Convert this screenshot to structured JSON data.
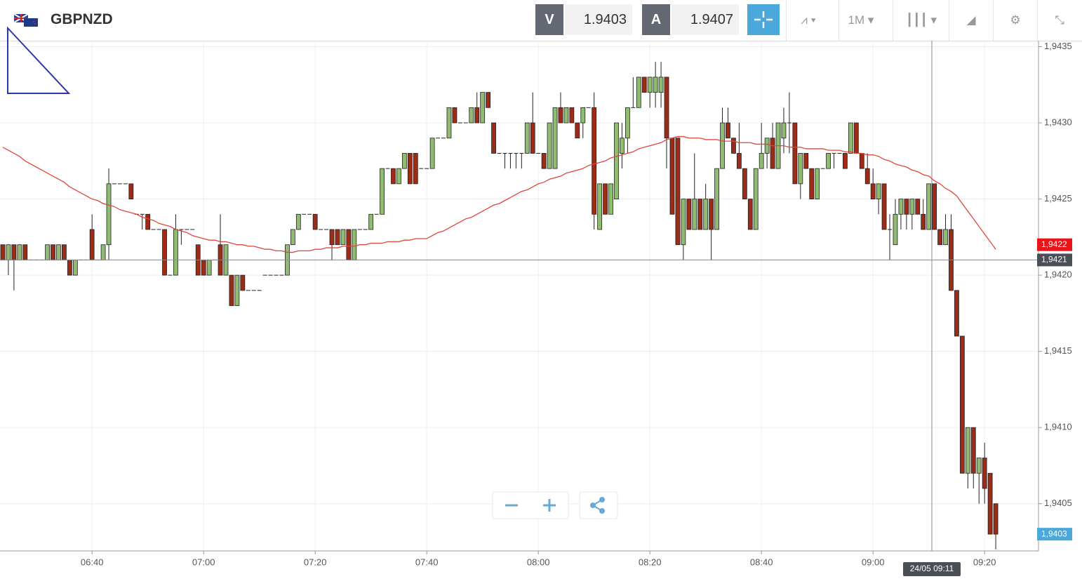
{
  "header": {
    "symbol": "GBPNZD",
    "bid_label": "V",
    "bid": "1.9403",
    "ask_label": "A",
    "ask": "1.9407",
    "timeframe": "1M"
  },
  "chart_data": {
    "type": "candlestick",
    "crosshair_time": "24/05 09:11",
    "up_color": "#8fbc72",
    "down_color": "#9c2b17",
    "grid": true,
    "categories": [
      null,
      null,
      null,
      null,
      null,
      null,
      null,
      null,
      null,
      null,
      null,
      null,
      null,
      null,
      null,
      null,
      "06:40",
      null,
      null,
      null,
      null,
      null,
      null,
      null,
      null,
      null,
      null,
      null,
      null,
      null,
      null,
      null,
      null,
      null,
      null,
      null,
      "07:00",
      null,
      null,
      null,
      null,
      null,
      null,
      null,
      null,
      null,
      null,
      null,
      null,
      null,
      null,
      null,
      null,
      null,
      null,
      null,
      "07:20",
      null,
      null,
      null,
      null,
      null,
      null,
      null,
      null,
      null,
      null,
      null,
      null,
      null,
      null,
      null,
      null,
      null,
      null,
      null,
      "07:40",
      null,
      null,
      null,
      null,
      null,
      null,
      null,
      null,
      null,
      null,
      null,
      null,
      null,
      null,
      null,
      null,
      null,
      null,
      null,
      "08:00",
      null,
      null,
      null,
      null,
      null,
      null,
      null,
      null,
      null,
      null,
      null,
      null,
      null,
      null,
      null,
      null,
      null,
      null,
      null,
      "08:20",
      null,
      null,
      null,
      null,
      null,
      null,
      null,
      null,
      null,
      null,
      null,
      null,
      null,
      null,
      null,
      null,
      null,
      null,
      null,
      "08:40",
      null,
      null,
      null,
      null,
      null,
      null,
      null,
      null,
      null,
      null,
      null,
      null,
      null,
      null,
      null,
      null,
      null,
      null,
      null,
      "09:00",
      null,
      null,
      null,
      null,
      null,
      null,
      null,
      null,
      null,
      null,
      null,
      null,
      null,
      null,
      null,
      null,
      null,
      null,
      null,
      "09:20",
      null,
      null
    ],
    "open": [
      1.9422,
      1.9421,
      1.9422,
      1.9421,
      1.9422,
      1.9421,
      1.9421,
      1.9421,
      1.9421,
      1.9422,
      1.9421,
      1.9422,
      1.9421,
      1.942,
      1.9421,
      1.9421,
      1.9423,
      1.9421,
      1.9421,
      1.9422,
      1.9426,
      1.9426,
      1.9426,
      1.9426,
      1.9424,
      1.9424,
      1.9424,
      1.9423,
      1.9423,
      1.9423,
      1.942,
      1.942,
      1.9423,
      1.9423,
      1.9423,
      1.9422,
      1.9421,
      1.942,
      1.9421,
      1.9422,
      1.942,
      1.942,
      1.9418,
      1.942,
      1.9419,
      1.9419,
      1.9419,
      1.942,
      1.942,
      1.942,
      1.942,
      1.942,
      1.9422,
      1.9423,
      1.9424,
      1.9424,
      1.9424,
      1.9423,
      1.9423,
      1.9423,
      1.9423,
      1.9422,
      1.9423,
      1.9421,
      1.9423,
      1.9423,
      1.9423,
      1.9424,
      1.9424,
      1.9427,
      1.9427,
      1.9426,
      1.9427,
      1.9428,
      1.9428,
      1.9427,
      1.9427,
      1.9427,
      1.9429,
      1.9429,
      1.9429,
      1.9431,
      1.943,
      1.943,
      1.943,
      1.9431,
      1.943,
      1.9432,
      1.943,
      1.9428,
      1.9428,
      1.9428,
      1.9428,
      1.9428,
      1.9428,
      1.943,
      1.9428,
      1.9428,
      1.9427,
      1.9427,
      1.9431,
      1.943,
      1.9431,
      1.943,
      1.943,
      1.9431,
      1.9431,
      1.9423,
      1.9426,
      1.9424,
      1.9425,
      1.9428,
      1.9429,
      1.9431,
      1.9431,
      1.9433,
      1.9432,
      1.9432,
      1.9432,
      1.9433,
      1.9429,
      1.9429,
      1.9422,
      1.9425,
      1.9423,
      1.9425,
      1.9423,
      1.9425,
      1.9423,
      1.9427,
      1.943,
      1.9429,
      1.9428,
      1.9427,
      1.9425,
      1.9423,
      1.9427,
      1.9428,
      1.9429,
      1.9427,
      1.9429,
      1.943,
      1.943,
      1.9426,
      1.9428,
      1.9427,
      1.9425,
      1.9427,
      1.9427,
      1.9428,
      1.9428,
      1.9428,
      1.9428,
      1.943,
      1.9428,
      1.9427,
      1.9426,
      1.9425,
      1.9426,
      1.9423,
      1.9422,
      1.9424,
      1.9425,
      1.9424,
      1.9425,
      1.9424,
      1.9423,
      1.9426,
      1.9423,
      1.9422,
      1.9423,
      1.9419,
      1.9416,
      1.9407,
      1.941,
      1.9407,
      1.9408,
      1.9407,
      1.9405
    ],
    "high": [
      1.9422,
      1.9422,
      1.9422,
      1.9422,
      1.9422,
      1.9421,
      1.9421,
      1.9421,
      1.9422,
      1.9422,
      1.9422,
      1.9422,
      1.9421,
      1.9421,
      1.9421,
      1.9421,
      1.9424,
      1.9421,
      1.9422,
      1.9427,
      1.9426,
      1.9426,
      1.9426,
      1.9426,
      1.9424,
      1.9424,
      1.9424,
      1.9423,
      1.9423,
      1.9423,
      1.942,
      1.9424,
      1.9423,
      1.9423,
      1.9423,
      1.9422,
      1.9421,
      1.9421,
      1.9421,
      1.9424,
      1.9422,
      1.942,
      1.942,
      1.942,
      1.9419,
      1.9419,
      1.9419,
      1.942,
      1.942,
      1.942,
      1.942,
      1.9422,
      1.9423,
      1.9424,
      1.9424,
      1.9424,
      1.9424,
      1.9423,
      1.9423,
      1.9423,
      1.9423,
      1.9423,
      1.9423,
      1.9423,
      1.9423,
      1.9423,
      1.9424,
      1.9424,
      1.9427,
      1.9427,
      1.9427,
      1.9427,
      1.9428,
      1.9428,
      1.9428,
      1.9427,
      1.9427,
      1.9429,
      1.9429,
      1.9429,
      1.9431,
      1.9431,
      1.943,
      1.943,
      1.9431,
      1.9432,
      1.9432,
      1.9432,
      1.943,
      1.9428,
      1.9428,
      1.9428,
      1.9428,
      1.9428,
      1.943,
      1.9432,
      1.9428,
      1.9428,
      1.943,
      1.9431,
      1.9432,
      1.9431,
      1.9431,
      1.943,
      1.9431,
      1.9431,
      1.9432,
      1.9426,
      1.9426,
      1.9426,
      1.943,
      1.943,
      1.9431,
      1.9433,
      1.9433,
      1.9433,
      1.9433,
      1.9434,
      1.9434,
      1.9433,
      1.9429,
      1.9429,
      1.9425,
      1.9425,
      1.9428,
      1.9425,
      1.9426,
      1.9425,
      1.9427,
      1.9431,
      1.9431,
      1.9429,
      1.943,
      1.9427,
      1.9425,
      1.9427,
      1.943,
      1.9429,
      1.943,
      1.943,
      1.9431,
      1.9432,
      1.943,
      1.9428,
      1.9428,
      1.9427,
      1.9427,
      1.9427,
      1.9428,
      1.9428,
      1.9428,
      1.9428,
      1.943,
      1.943,
      1.9428,
      1.9428,
      1.9427,
      1.9426,
      1.9426,
      1.9424,
      1.9425,
      1.9425,
      1.9425,
      1.9425,
      1.9425,
      1.9425,
      1.9426,
      1.9426,
      1.9423,
      1.9424,
      1.9424,
      1.9419,
      1.9416,
      1.941,
      1.941,
      1.9408,
      1.9409,
      1.9407,
      1.9405
    ],
    "low": [
      1.9421,
      1.942,
      1.9419,
      1.9421,
      1.9421,
      1.9421,
      1.9421,
      1.9421,
      1.9421,
      1.9421,
      1.9421,
      1.9421,
      1.942,
      1.942,
      1.9421,
      1.9421,
      1.9421,
      1.9421,
      1.9421,
      1.9421,
      1.9426,
      1.9426,
      1.9426,
      1.9425,
      1.9424,
      1.9423,
      1.9423,
      1.9423,
      1.9423,
      1.942,
      1.942,
      1.942,
      1.9422,
      1.9423,
      1.9423,
      1.942,
      1.942,
      1.942,
      1.9421,
      1.942,
      1.942,
      1.9418,
      1.9418,
      1.9419,
      1.9419,
      1.9419,
      1.9419,
      1.942,
      1.942,
      1.942,
      1.942,
      1.942,
      1.9422,
      1.9423,
      1.9424,
      1.9424,
      1.9423,
      1.9423,
      1.9423,
      1.9421,
      1.9422,
      1.9422,
      1.9421,
      1.9421,
      1.9423,
      1.9423,
      1.9423,
      1.9424,
      1.9424,
      1.9427,
      1.9426,
      1.9426,
      1.9427,
      1.9426,
      1.9426,
      1.9427,
      1.9427,
      1.9427,
      1.9429,
      1.9429,
      1.9429,
      1.943,
      1.943,
      1.943,
      1.943,
      1.943,
      1.943,
      1.9431,
      1.9428,
      1.9428,
      1.9427,
      1.9427,
      1.9427,
      1.9427,
      1.9428,
      1.9428,
      1.9428,
      1.9427,
      1.9427,
      1.9427,
      1.943,
      1.943,
      1.943,
      1.9429,
      1.9429,
      1.9431,
      1.9423,
      1.9423,
      1.9424,
      1.9424,
      1.9425,
      1.9427,
      1.9428,
      1.9431,
      1.9431,
      1.9432,
      1.9431,
      1.9431,
      1.9431,
      1.9427,
      1.9424,
      1.9422,
      1.9421,
      1.9423,
      1.9423,
      1.9423,
      1.9423,
      1.9421,
      1.9423,
      1.9427,
      1.9429,
      1.9428,
      1.9427,
      1.9425,
      1.9423,
      1.9423,
      1.9427,
      1.9427,
      1.9427,
      1.9427,
      1.9428,
      1.9428,
      1.9426,
      1.9425,
      1.9427,
      1.9425,
      1.9425,
      1.9427,
      1.9427,
      1.9427,
      1.9428,
      1.9427,
      1.9428,
      1.9428,
      1.9427,
      1.9426,
      1.9425,
      1.9424,
      1.9423,
      1.9421,
      1.9422,
      1.9423,
      1.9423,
      1.9423,
      1.9424,
      1.9423,
      1.9423,
      1.9423,
      1.9422,
      1.9422,
      1.9419,
      1.9416,
      1.9407,
      1.9406,
      1.9406,
      1.9405,
      1.9405,
      1.9403,
      1.9402
    ],
    "close": [
      1.9421,
      1.9422,
      1.9421,
      1.9422,
      1.9421,
      1.9421,
      1.9421,
      1.9421,
      1.9422,
      1.9421,
      1.9422,
      1.9421,
      1.942,
      1.9421,
      1.9421,
      1.9421,
      1.9421,
      1.9421,
      1.9422,
      1.9426,
      1.9426,
      1.9426,
      1.9426,
      1.9425,
      1.9424,
      1.9424,
      1.9423,
      1.9423,
      1.9423,
      1.942,
      1.942,
      1.9423,
      1.9423,
      1.9423,
      1.9423,
      1.942,
      1.942,
      1.9421,
      1.9421,
      1.942,
      1.9422,
      1.9418,
      1.942,
      1.9419,
      1.9419,
      1.9419,
      1.9419,
      1.942,
      1.942,
      1.942,
      1.942,
      1.9422,
      1.9423,
      1.9424,
      1.9424,
      1.9424,
      1.9423,
      1.9423,
      1.9423,
      1.9422,
      1.9422,
      1.9423,
      1.9421,
      1.9423,
      1.9423,
      1.9423,
      1.9424,
      1.9424,
      1.9427,
      1.9427,
      1.9426,
      1.9427,
      1.9428,
      1.9426,
      1.9426,
      1.9427,
      1.9427,
      1.9429,
      1.9429,
      1.9429,
      1.9431,
      1.943,
      1.943,
      1.943,
      1.9431,
      1.943,
      1.9432,
      1.9431,
      1.9428,
      1.9428,
      1.9428,
      1.9428,
      1.9428,
      1.9428,
      1.943,
      1.9428,
      1.9428,
      1.9427,
      1.943,
      1.9431,
      1.943,
      1.9431,
      1.943,
      1.9429,
      1.9431,
      1.9431,
      1.9424,
      1.9426,
      1.9424,
      1.9426,
      1.943,
      1.9429,
      1.9431,
      1.9431,
      1.9433,
      1.9432,
      1.9433,
      1.9433,
      1.9433,
      1.9429,
      1.9424,
      1.9422,
      1.9425,
      1.9423,
      1.9425,
      1.9423,
      1.9425,
      1.9423,
      1.9427,
      1.943,
      1.9429,
      1.9428,
      1.9427,
      1.9425,
      1.9423,
      1.9427,
      1.9428,
      1.9429,
      1.9427,
      1.943,
      1.943,
      1.943,
      1.9426,
      1.9428,
      1.9427,
      1.9425,
      1.9427,
      1.9427,
      1.9428,
      1.9428,
      1.9428,
      1.9427,
      1.943,
      1.9428,
      1.9427,
      1.9426,
      1.9425,
      1.9426,
      1.9423,
      1.9423,
      1.9424,
      1.9425,
      1.9424,
      1.9425,
      1.9424,
      1.9423,
      1.9426,
      1.9423,
      1.9422,
      1.9423,
      1.9419,
      1.9416,
      1.9407,
      1.941,
      1.9407,
      1.9408,
      1.9406,
      1.9403,
      1.9403
    ],
    "ma": {
      "color": "#e0463c",
      "values": [
        1.94284,
        1.94282,
        1.9428,
        1.94278,
        1.94275,
        1.94273,
        1.94271,
        1.94269,
        1.94267,
        1.94265,
        1.94263,
        1.94261,
        1.94258,
        1.94256,
        1.94254,
        1.94252,
        1.9425,
        1.94249,
        1.94247,
        1.94246,
        1.94245,
        1.94243,
        1.94242,
        1.94241,
        1.9424,
        1.94238,
        1.94237,
        1.94236,
        1.94234,
        1.94233,
        1.94232,
        1.9423,
        1.94229,
        1.94228,
        1.94226,
        1.94225,
        1.94224,
        1.94223,
        1.94223,
        1.94222,
        1.94222,
        1.94221,
        1.9422,
        1.9422,
        1.94219,
        1.94219,
        1.94218,
        1.94217,
        1.94217,
        1.94216,
        1.94216,
        1.94215,
        1.94215,
        1.94216,
        1.94216,
        1.94216,
        1.94217,
        1.94217,
        1.94218,
        1.94218,
        1.94218,
        1.94219,
        1.94219,
        1.94219,
        1.9422,
        1.9422,
        1.94221,
        1.94221,
        1.94221,
        1.94222,
        1.94222,
        1.94222,
        1.94223,
        1.94223,
        1.94224,
        1.94224,
        1.94224,
        1.94226,
        1.94228,
        1.94229,
        1.94231,
        1.94233,
        1.94235,
        1.94237,
        1.94238,
        1.9424,
        1.94242,
        1.94244,
        1.94246,
        1.94247,
        1.94249,
        1.94251,
        1.94253,
        1.94255,
        1.94256,
        1.94258,
        1.9426,
        1.94261,
        1.94263,
        1.94264,
        1.94265,
        1.94267,
        1.94268,
        1.94269,
        1.9427,
        1.94272,
        1.94273,
        1.94274,
        1.94275,
        1.94277,
        1.94278,
        1.94279,
        1.9428,
        1.94281,
        1.94283,
        1.94284,
        1.94285,
        1.94286,
        1.94287,
        1.94289,
        1.9429,
        1.94291,
        1.94291,
        1.9429,
        1.9429,
        1.9429,
        1.94289,
        1.94289,
        1.94289,
        1.94288,
        1.94288,
        1.94288,
        1.94287,
        1.94287,
        1.94287,
        1.94286,
        1.94286,
        1.94286,
        1.94285,
        1.94285,
        1.94285,
        1.94284,
        1.94284,
        1.94284,
        1.94283,
        1.94283,
        1.94283,
        1.94283,
        1.94282,
        1.94282,
        1.94282,
        1.94281,
        1.94281,
        1.9428,
        1.9428,
        1.94279,
        1.94279,
        1.94278,
        1.94276,
        1.94275,
        1.94273,
        1.94272,
        1.94271,
        1.94269,
        1.94268,
        1.94266,
        1.94265,
        1.94262,
        1.9426,
        1.94257,
        1.94255,
        1.94252,
        1.94247,
        1.94242,
        1.94237,
        1.94232,
        1.94227,
        1.94222,
        1.94217
      ]
    },
    "ylim": [
      1.94019,
      1.94353
    ],
    "yticks": [
      {
        "value": 1.9405,
        "label": "1,9405"
      },
      {
        "value": 1.941,
        "label": "1,9410"
      },
      {
        "value": 1.9415,
        "label": "1,9415"
      },
      {
        "value": 1.942,
        "label": "1,9420"
      },
      {
        "value": 1.9425,
        "label": "1,9425"
      },
      {
        "value": 1.943,
        "label": "1,9430"
      },
      {
        "value": 1.9435,
        "label": "1,9435"
      }
    ],
    "price_markers": [
      {
        "value": 1.9422,
        "label": "1,9422",
        "color": "#e8141a"
      },
      {
        "value": 1.9421,
        "label": "1,9421",
        "color": "#4a4e57"
      },
      {
        "value": 1.9403,
        "label": "1,9403",
        "color": "#4aa8dc"
      }
    ]
  }
}
